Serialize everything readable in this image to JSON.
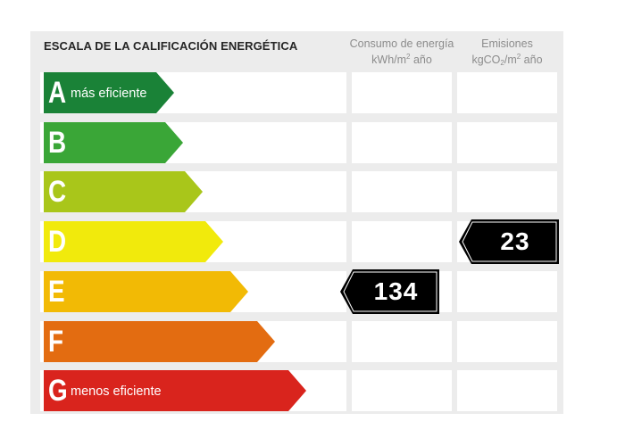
{
  "title": "ESCALA DE LA CALIFICACIÓN ENERGÉTICA",
  "columns": {
    "consumo": {
      "line1": "Consumo de energía",
      "line2_pre": "kWh/m",
      "line2_sup": "2",
      "line2_post": " año"
    },
    "emisiones": {
      "line1": "Emisiones",
      "line2_pre": "kgCO",
      "line2_sub": "2",
      "line2_mid": "/m",
      "line2_sup": "2",
      "line2_post": " año"
    }
  },
  "classes": [
    {
      "letter": "A",
      "label": "más eficiente",
      "color": "#1a8237"
    },
    {
      "letter": "B",
      "label": "",
      "color": "#3aa637"
    },
    {
      "letter": "C",
      "label": "",
      "color": "#a9c61a"
    },
    {
      "letter": "D",
      "label": "",
      "color": "#f1ea0c"
    },
    {
      "letter": "E",
      "label": "",
      "color": "#f2ba05"
    },
    {
      "letter": "F",
      "label": "",
      "color": "#e36c11"
    },
    {
      "letter": "G",
      "label": "menos eficiente",
      "color": "#d9241d"
    }
  ],
  "ratings": {
    "consumo": {
      "value": "134",
      "class": "E"
    },
    "emisiones": {
      "value": "23",
      "class": "D"
    }
  }
}
